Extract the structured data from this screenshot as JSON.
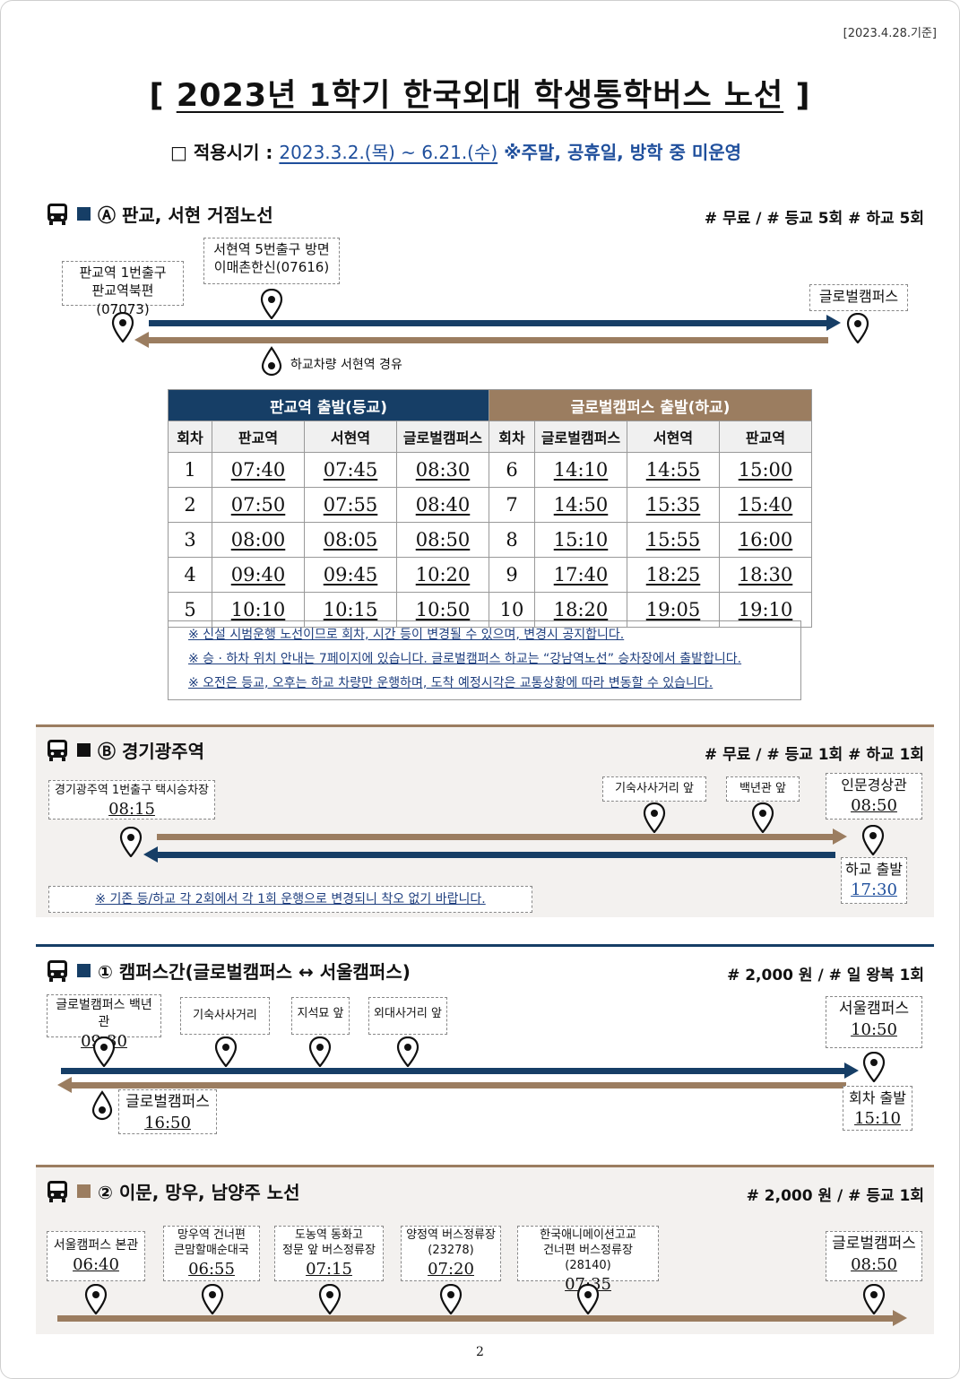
{
  "date_note": "[2023.4.28.기준]",
  "title": {
    "open": "[",
    "text": "2023년 1학기 한국외대 학생통학버스 노선",
    "close": "]"
  },
  "period": {
    "label": "□ 적용시기 :",
    "range": "2023.3.2.(목) ~ 6.21.(수)",
    "note": "※주말, 공휴일, 방학 중 미운영"
  },
  "colors": {
    "navy": "#163e66",
    "brown": "#9b7d60",
    "blue_text": "#1f4f9c"
  },
  "icons": {
    "bus": "bus-icon",
    "pin": "location-pin-icon",
    "drop": "return-stop-icon"
  },
  "route_a": {
    "title": "Ⓐ 판교, 서현 거점노선",
    "info": "# 무료 / # 등교 5회 # 하교 5회",
    "stop1": {
      "line1": "판교역 1번출구",
      "line2": "판교역북편(07073)"
    },
    "stop2": {
      "line1": "서현역 5번출구 방면",
      "line2": "이매촌한신(07616)"
    },
    "stop3": {
      "line1": "글로벌캠퍼스"
    },
    "return_note": "하교차량 서현역 경유",
    "table": {
      "up_header": "판교역 출발(등교)",
      "down_header": "글로벌캠퍼스 출발(하교)",
      "cols": [
        "회차",
        "판교역",
        "서현역",
        "글로벌캠퍼스",
        "회차",
        "글로벌캠퍼스",
        "서현역",
        "판교역"
      ],
      "rows": [
        [
          "1",
          "07:40",
          "07:45",
          "08:30",
          "6",
          "14:10",
          "14:55",
          "15:00"
        ],
        [
          "2",
          "07:50",
          "07:55",
          "08:40",
          "7",
          "14:50",
          "15:35",
          "15:40"
        ],
        [
          "3",
          "08:00",
          "08:05",
          "08:50",
          "8",
          "15:10",
          "15:55",
          "16:00"
        ],
        [
          "4",
          "09:40",
          "09:45",
          "10:20",
          "9",
          "17:40",
          "18:25",
          "18:30"
        ],
        [
          "5",
          "10:10",
          "10:15",
          "10:50",
          "10",
          "18:20",
          "19:05",
          "19:10"
        ]
      ]
    },
    "notes": [
      "※ 신설 시범운행 노선이므로 회차, 시간 등이 변경될 수 있으며, 변경시 공지합니다.",
      "※ 승 · 하차 위치 안내는 7페이지에 있습니다. 글로벌캠퍼스 하교는 “강남역노선” 승차장에서 출발합니다.",
      "※ 오전은 등교, 오후는 하교 차량만 운행하며, 도착 예정시각은 교통상황에 따라 변동할 수 있습니다."
    ]
  },
  "route_b": {
    "title": "Ⓑ 경기광주역",
    "info": "# 무료 / # 등교 1회 # 하교 1회",
    "stop1": {
      "line1": "경기광주역 1번출구 택시승차장",
      "time": "08:15"
    },
    "stop2": {
      "line1": "기숙사사거리 앞"
    },
    "stop3": {
      "line1": "백년관 앞"
    },
    "stop4": {
      "line1": "인문경상관",
      "time": "08:50"
    },
    "return": {
      "label": "하교 출발",
      "time": "17:30"
    },
    "note": "※ 기존 등/하교 각 2회에서 각 1회 운행으로 변경되니 착오 없기 바랍니다."
  },
  "route_1": {
    "title": "① 캠퍼스간(글로벌캠퍼스 ↔ 서울캠퍼스)",
    "info": "# 2,000 원 / # 일 왕복 1회",
    "stop1": {
      "line1": "글로벌캠퍼스 백년관",
      "time": "09:30"
    },
    "stop2": {
      "line1": "기숙사사거리"
    },
    "stop3": {
      "line1": "지석묘 앞"
    },
    "stop4": {
      "line1": "외대사거리 앞"
    },
    "stop5": {
      "line1": "서울캠퍼스",
      "time": "10:50"
    },
    "return_end": {
      "line1": "글로벌캠퍼스",
      "time": "16:50"
    },
    "return_start": {
      "label": "회차 출발",
      "time": "15:10"
    }
  },
  "route_2": {
    "title": "② 이문, 망우, 남양주 노선",
    "info": "# 2,000 원 / # 등교 1회",
    "stop1": {
      "line1": "서울캠퍼스 본관",
      "time": "06:40"
    },
    "stop2": {
      "line1": "망우역 건너편",
      "line2": "큰맘할매순대국",
      "time": "06:55"
    },
    "stop3": {
      "line1": "도농역 동화고",
      "line2": "정문 앞 버스정류장",
      "time": "07:15"
    },
    "stop4": {
      "line1": "양정역 버스정류장",
      "line2": "(23278)",
      "time": "07:20"
    },
    "stop5": {
      "line1": "한국애니메이션고교",
      "line2": "건너편 버스정류장(28140)",
      "time": "07:35"
    },
    "stop6": {
      "line1": "글로벌캠퍼스",
      "time": "08:50"
    }
  },
  "page_number": "2"
}
